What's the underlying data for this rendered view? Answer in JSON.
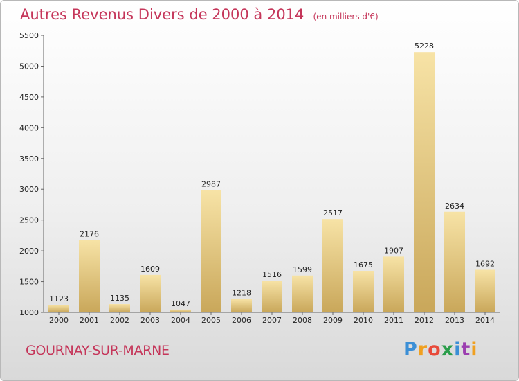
{
  "title": "Autres Revenus Divers de 2000 à 2014",
  "subtitle": "(en milliers d'€)",
  "city": "GOURNAY-SUR-MARNE",
  "logo_text": "Proxiti",
  "colors": {
    "title": "#c5365a",
    "bar_light": "#f7e3a6",
    "bar_dark": "#c9a75a",
    "axis": "#666666"
  },
  "chart_data": {
    "type": "bar",
    "title": "Autres Revenus Divers de 2000 à 2014",
    "subtitle": "(en milliers d'€)",
    "categories": [
      "2000",
      "2001",
      "2002",
      "2003",
      "2004",
      "2005",
      "2006",
      "2007",
      "2008",
      "2009",
      "2010",
      "2011",
      "2012",
      "2013",
      "2014"
    ],
    "values": [
      1123,
      2176,
      1135,
      1609,
      1047,
      2987,
      1218,
      1516,
      1599,
      2517,
      1675,
      1907,
      5228,
      2634,
      1692
    ],
    "ylim": [
      1000,
      5500
    ],
    "yticks": [
      1000,
      1500,
      2000,
      2500,
      3000,
      3500,
      4000,
      4500,
      5000,
      5500
    ],
    "grid": false,
    "data_labels": true
  }
}
